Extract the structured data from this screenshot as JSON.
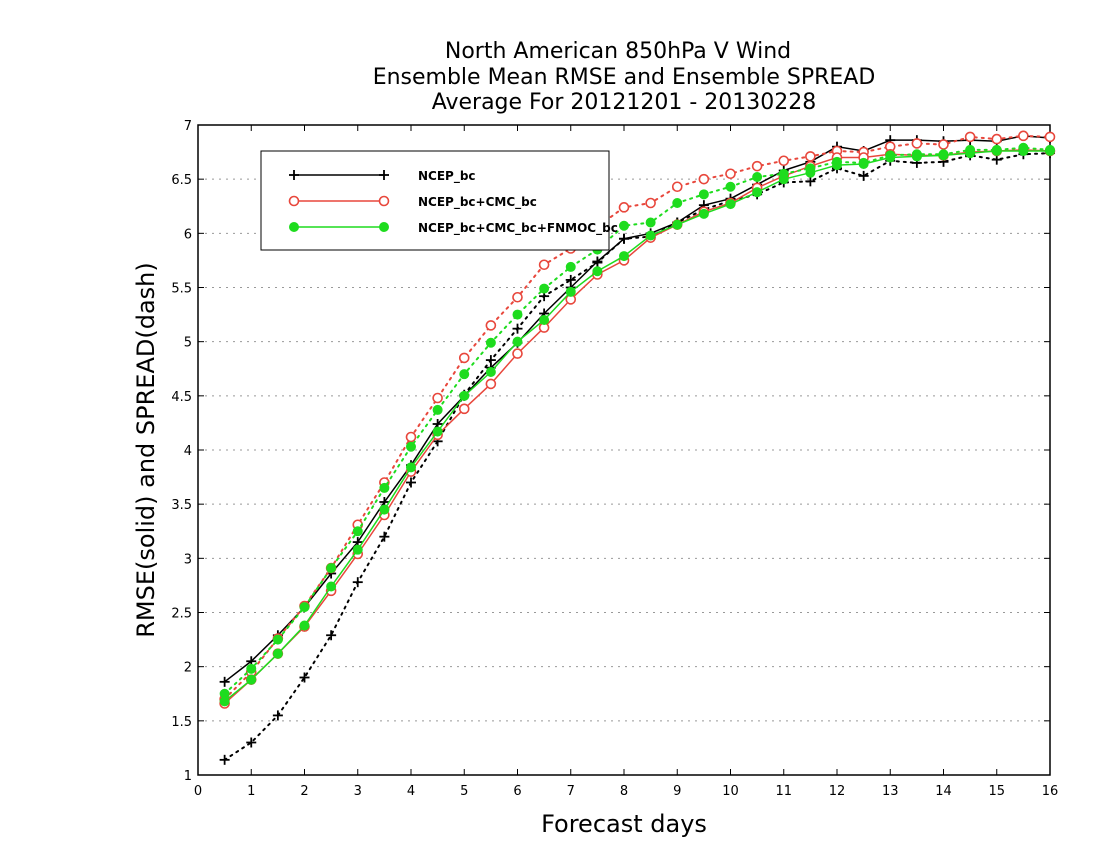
{
  "chart_data": {
    "type": "line",
    "title": [
      "North American 850hPa V Wind",
      "Ensemble Mean RMSE and Ensemble SPREAD",
      "Average For 20121201 - 20130228"
    ],
    "xlabel": "Forecast days",
    "ylabel": "RMSE(solid) and SPREAD(dash)",
    "xlim": [
      0,
      16
    ],
    "ylim": [
      1,
      7
    ],
    "xticks": [
      0,
      1,
      2,
      3,
      4,
      5,
      6,
      7,
      8,
      9,
      10,
      11,
      12,
      13,
      14,
      15,
      16
    ],
    "yticks": [
      1,
      1.5,
      2,
      2.5,
      3,
      3.5,
      4,
      4.5,
      5,
      5.5,
      6,
      6.5,
      7
    ],
    "grid": "horizontal dotted",
    "legend_position": "top-left",
    "x": [
      0.5,
      1,
      1.5,
      2,
      2.5,
      3,
      3.5,
      4,
      4.5,
      5,
      5.5,
      6,
      6.5,
      7,
      7.5,
      8,
      8.5,
      9,
      9.5,
      10,
      10.5,
      11,
      11.5,
      12,
      12.5,
      13,
      13.5,
      14,
      14.5,
      15,
      15.5,
      16
    ],
    "series": [
      {
        "name": "NCEP_bc",
        "color": "#000000",
        "marker": "plus",
        "rmse": [
          1.86,
          2.05,
          2.29,
          2.55,
          2.86,
          3.15,
          3.52,
          3.86,
          4.24,
          4.5,
          4.76,
          4.99,
          5.26,
          5.5,
          5.74,
          5.95,
          6.0,
          6.1,
          6.26,
          6.32,
          6.45,
          6.58,
          6.66,
          6.8,
          6.76,
          6.86,
          6.86,
          6.85,
          6.86,
          6.85,
          6.9,
          6.88
        ],
        "spread": [
          1.14,
          1.3,
          1.55,
          1.9,
          2.29,
          2.78,
          3.2,
          3.7,
          4.08,
          4.51,
          4.83,
          5.12,
          5.42,
          5.57,
          5.73,
          5.95,
          5.97,
          6.1,
          6.22,
          6.3,
          6.36,
          6.47,
          6.48,
          6.6,
          6.53,
          6.67,
          6.65,
          6.66,
          6.72,
          6.68,
          6.73,
          6.74
        ]
      },
      {
        "name": "NCEP_bc+CMC_bc",
        "color": "#e8473c",
        "marker": "open-circle",
        "rmse": [
          1.66,
          1.88,
          2.12,
          2.37,
          2.7,
          3.04,
          3.4,
          3.8,
          4.14,
          4.38,
          4.61,
          4.89,
          5.13,
          5.39,
          5.62,
          5.75,
          5.96,
          6.08,
          6.2,
          6.28,
          6.42,
          6.53,
          6.62,
          6.7,
          6.7,
          6.73,
          6.72,
          6.72,
          6.75,
          6.76,
          6.77,
          6.76
        ],
        "spread": [
          1.7,
          1.95,
          2.26,
          2.56,
          2.91,
          3.31,
          3.7,
          4.12,
          4.48,
          4.85,
          5.15,
          5.41,
          5.71,
          5.86,
          6.06,
          6.24,
          6.28,
          6.43,
          6.5,
          6.55,
          6.62,
          6.67,
          6.71,
          6.76,
          6.75,
          6.8,
          6.83,
          6.82,
          6.89,
          6.87,
          6.9,
          6.89
        ]
      },
      {
        "name": "NCEP_bc+CMC_bc+FNMOC_bc",
        "color": "#1edc1e",
        "marker": "filled-circle",
        "rmse": [
          1.68,
          1.88,
          2.12,
          2.38,
          2.74,
          3.08,
          3.45,
          3.84,
          4.17,
          4.5,
          4.72,
          5.0,
          5.2,
          5.46,
          5.65,
          5.79,
          5.98,
          6.08,
          6.18,
          6.27,
          6.38,
          6.5,
          6.56,
          6.63,
          6.64,
          6.7,
          6.71,
          6.72,
          6.74,
          6.76,
          6.76,
          6.76
        ],
        "spread": [
          1.75,
          1.98,
          2.25,
          2.55,
          2.91,
          3.25,
          3.65,
          4.03,
          4.37,
          4.7,
          4.99,
          5.25,
          5.49,
          5.69,
          5.85,
          6.07,
          6.1,
          6.28,
          6.36,
          6.43,
          6.52,
          6.55,
          6.6,
          6.66,
          6.65,
          6.72,
          6.73,
          6.73,
          6.77,
          6.77,
          6.79,
          6.77
        ]
      }
    ]
  }
}
